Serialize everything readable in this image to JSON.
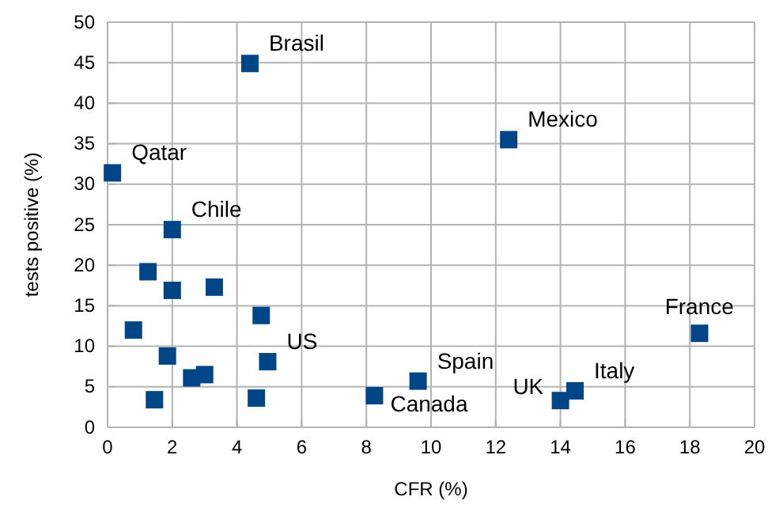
{
  "chart_data": {
    "type": "scatter",
    "xlabel": "CFR (%)",
    "ylabel": "tests positive (%)",
    "x": [
      0.15,
      4.4,
      2.0,
      12.4,
      18.3,
      9.6,
      8.25,
      14.0,
      14.45,
      4.95,
      1.25,
      2.0,
      3.3,
      4.75,
      0.8,
      1.85,
      1.45,
      2.6,
      3.0,
      4.6
    ],
    "series": [
      {
        "color": "#004586",
        "values": [
          31.4,
          44.9,
          24.4,
          35.5,
          11.6,
          5.7,
          3.9,
          3.3,
          4.5,
          8.1,
          19.2,
          16.9,
          17.3,
          13.8,
          12.0,
          8.8,
          3.4,
          6.1,
          6.5,
          3.6
        ]
      }
    ],
    "annotations": [
      {
        "text": "Qatar",
        "x": 0.15,
        "y": 31.4
      },
      {
        "text": "Brasil",
        "x": 4.4,
        "y": 44.9
      },
      {
        "text": "Chile",
        "x": 2.0,
        "y": 24.4
      },
      {
        "text": "Mexico",
        "x": 12.4,
        "y": 35.5
      },
      {
        "text": "France",
        "x": 18.3,
        "y": 11.6
      },
      {
        "text": "Spain",
        "x": 9.6,
        "y": 5.7
      },
      {
        "text": "Canada",
        "x": 8.25,
        "y": 3.9
      },
      {
        "text": "UK",
        "x": 14.0,
        "y": 3.3
      },
      {
        "text": "Italy",
        "x": 14.45,
        "y": 4.5
      },
      {
        "text": "US",
        "x": 4.95,
        "y": 8.1
      }
    ],
    "xlim": [
      0,
      20
    ],
    "xticks": [
      0,
      2,
      4,
      6,
      8,
      10,
      12,
      14,
      16,
      18,
      20
    ],
    "ylim": [
      0,
      50
    ],
    "yticks": [
      0,
      5,
      10,
      15,
      20,
      25,
      30,
      35,
      40,
      45,
      50
    ],
    "grid": true,
    "marker": "square"
  }
}
